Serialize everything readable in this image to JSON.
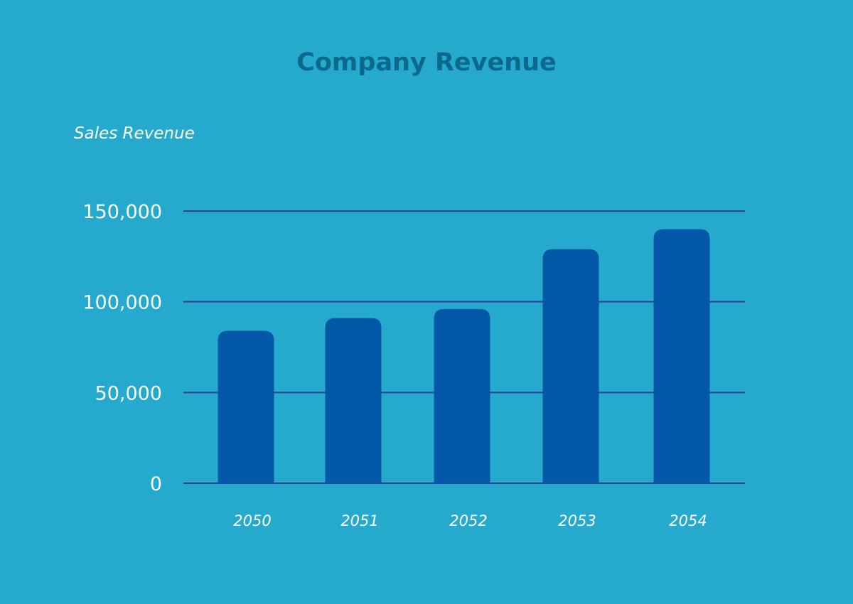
{
  "chart_data": {
    "type": "bar",
    "title": "Company Revenue",
    "xlabel": "",
    "ylabel": "Sales Revenue",
    "categories": [
      "2050",
      "2051",
      "2052",
      "2053",
      "2054"
    ],
    "values": [
      84000,
      91000,
      96000,
      129000,
      140000
    ],
    "ylim": [
      0,
      150000
    ],
    "yticks": [
      0,
      50000,
      100000,
      150000
    ],
    "ytick_labels": [
      "0",
      "50,000",
      "100,000",
      "150,000"
    ],
    "grid": true,
    "colors": {
      "background": "#25aacd",
      "bar": "#0358a8",
      "grid": "#2e3f9a",
      "title": "#0b6a8b"
    }
  }
}
